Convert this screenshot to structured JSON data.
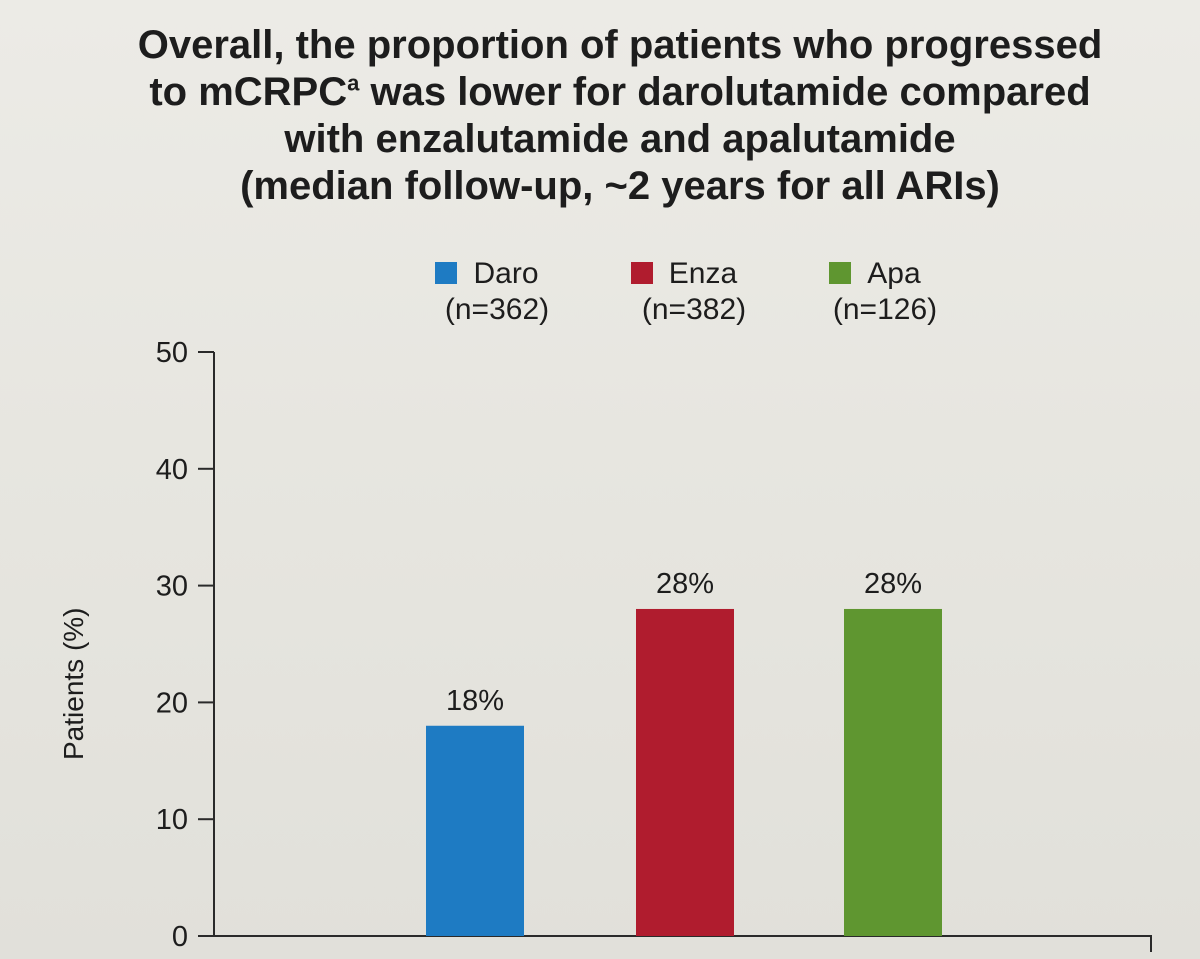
{
  "title": {
    "line1": "Overall, the proportion of patients who progressed",
    "line2_prefix": "to mCRPC",
    "line2_sup": "a",
    "line2_suffix": " was lower for darolutamide compared",
    "line3": "with enzalutamide and apalutamide",
    "line4": "(median follow-up, ~2 years for all ARIs)"
  },
  "colors": {
    "daro": "#1e7bc3",
    "enza": "#b01c2e",
    "apa": "#5f9630",
    "axis": "#2a2a2a"
  },
  "chart_data": {
    "type": "bar",
    "categories": [
      "Daro",
      "Enza",
      "Apa"
    ],
    "series": [
      {
        "name": "Daro",
        "n_label": "(n=362)",
        "value": 18,
        "label": "18%"
      },
      {
        "name": "Enza",
        "n_label": "(n=382)",
        "value": 28,
        "label": "28%"
      },
      {
        "name": "Apa",
        "n_label": "(n=126)",
        "value": 28,
        "label": "28%"
      }
    ],
    "ylabel": "Patients (%)",
    "ylim": [
      0,
      50
    ],
    "yticks": [
      "0",
      "10",
      "20",
      "30",
      "40",
      "50"
    ],
    "grid": false,
    "legend_position": "top"
  }
}
